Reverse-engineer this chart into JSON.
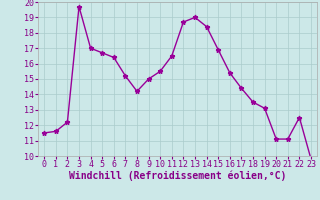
{
  "hours": [
    0,
    1,
    2,
    3,
    4,
    5,
    6,
    7,
    8,
    9,
    10,
    11,
    12,
    13,
    14,
    15,
    16,
    17,
    18,
    19,
    20,
    21,
    22,
    23
  ],
  "values": [
    11.5,
    11.6,
    12.2,
    19.7,
    17.0,
    16.7,
    16.4,
    15.2,
    14.2,
    15.0,
    15.5,
    16.5,
    18.7,
    19.0,
    18.4,
    16.9,
    15.4,
    14.4,
    13.5,
    13.1,
    11.1,
    11.1,
    12.5,
    9.8
  ],
  "line_color": "#990099",
  "marker": "*",
  "marker_size": 3.5,
  "bg_color": "#cce8e8",
  "grid_color": "#aacccc",
  "xlabel": "Windchill (Refroidissement éolien,°C)",
  "ylim": [
    10,
    20
  ],
  "yticks": [
    10,
    11,
    12,
    13,
    14,
    15,
    16,
    17,
    18,
    19,
    20
  ],
  "xticks": [
    0,
    1,
    2,
    3,
    4,
    5,
    6,
    7,
    8,
    9,
    10,
    11,
    12,
    13,
    14,
    15,
    16,
    17,
    18,
    19,
    20,
    21,
    22,
    23
  ],
  "tick_fontsize": 6,
  "xlabel_fontsize": 7,
  "line_width": 1.0,
  "tick_color": "#880088",
  "xlabel_color": "#880088"
}
